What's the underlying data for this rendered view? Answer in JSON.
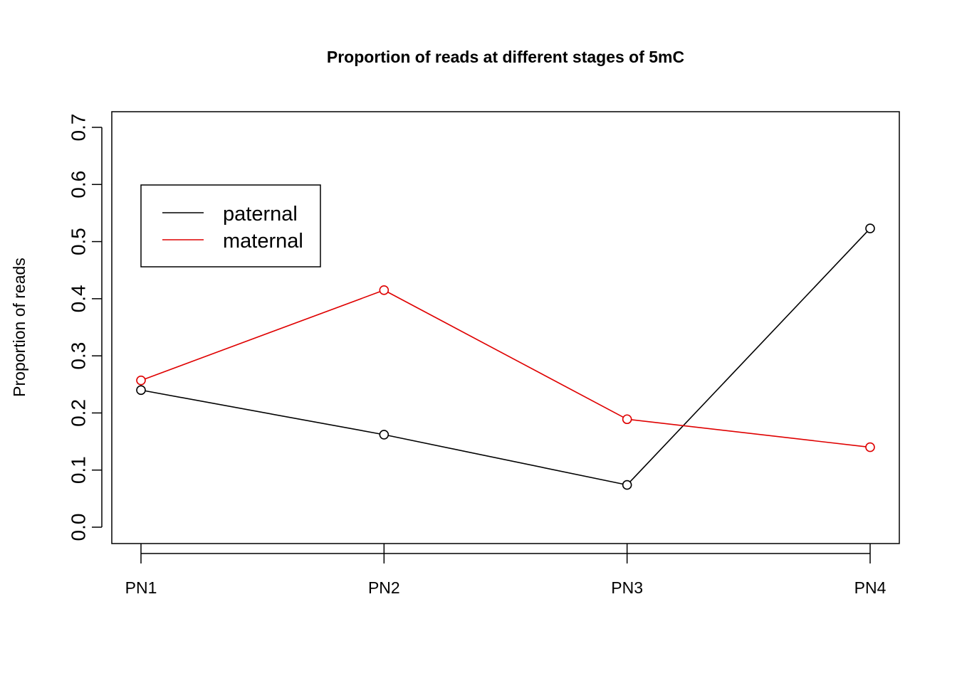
{
  "chart_data": {
    "type": "line",
    "title": "Proportion of reads at different stages of 5mC",
    "xlabel": "",
    "ylabel": "Proportion of reads",
    "categories": [
      "PN1",
      "PN2",
      "PN3",
      "PN4"
    ],
    "ylim": [
      0,
      0.7
    ],
    "yticks": [
      "0.0",
      "0.1",
      "0.2",
      "0.3",
      "0.4",
      "0.5",
      "0.6",
      "0.7"
    ],
    "grid": false,
    "legend_position": "top-left",
    "series": [
      {
        "name": "paternal",
        "color": "#000000",
        "values": [
          0.24,
          0.162,
          0.074,
          0.523
        ]
      },
      {
        "name": "maternal",
        "color": "#df0000",
        "values": [
          0.257,
          0.415,
          0.189,
          0.14
        ]
      }
    ]
  }
}
